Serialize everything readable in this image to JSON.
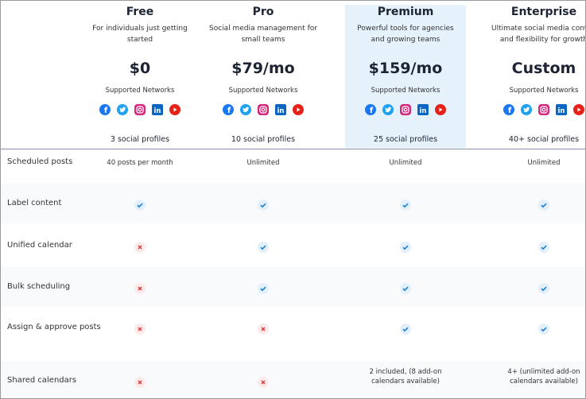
{
  "plans": [
    {
      "name": "Free",
      "description": "For individuals just getting started",
      "price": "$0",
      "networks_label": "Supported Networks",
      "profiles": "3 social profiles"
    },
    {
      "name": "Pro",
      "description": "Social media management for small teams",
      "price": "$79/mo",
      "networks_label": "Supported Networks",
      "profiles": "10 social profiles"
    },
    {
      "name": "Premium",
      "description": "Powerful tools for agencies and growing teams",
      "price": "$159/mo",
      "networks_label": "Supported Networks",
      "profiles": "25 social profiles"
    },
    {
      "name": "Enterprise",
      "description": "Ultimate social media control and flexibility for growth",
      "price": "Custom",
      "networks_label": "Supported Networks",
      "profiles": "40+ social profiles"
    }
  ],
  "features": [
    {
      "label": "Scheduled posts",
      "cells": [
        "40 posts per month",
        "Unlimited",
        "Unlimited",
        "Unlimited"
      ]
    },
    {
      "label": "Label content",
      "cells": [
        true,
        true,
        true,
        true
      ]
    },
    {
      "label": "Unified calendar",
      "cells": [
        false,
        true,
        true,
        true
      ]
    },
    {
      "label": "Bulk scheduling",
      "cells": [
        false,
        true,
        true,
        true
      ]
    },
    {
      "label": "Assign & approve posts",
      "cells": [
        false,
        false,
        true,
        true
      ]
    },
    {
      "label": "Shared calendars",
      "cells": [
        false,
        false,
        "2 included, (8 add-on calendars available)",
        "4+ (unlimited add-on calendars available)"
      ]
    }
  ]
}
